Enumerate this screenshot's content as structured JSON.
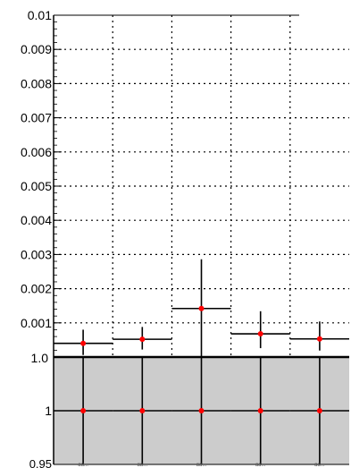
{
  "chart_data": [
    {
      "type": "scatter",
      "categories": [
        "",
        "",
        "",
        "",
        ""
      ],
      "x_bins": [
        [
          0,
          1
        ],
        [
          1,
          2
        ],
        [
          2,
          3
        ],
        [
          3,
          4
        ],
        [
          4,
          5
        ]
      ],
      "series": [
        {
          "values": [
            0.0004,
            0.00052,
            0.00142,
            0.00068,
            0.00053
          ],
          "err_low": [
            0.00034,
            0.0003,
            0.00142,
            0.00042,
            0.00034
          ],
          "err_high": [
            0.0004,
            0.00036,
            0.00144,
            0.00066,
            0.00051
          ],
          "marker_color": "#ff0000",
          "line_color": "#000000"
        }
      ],
      "ylim": [
        0,
        0.01
      ],
      "yticks": [
        {
          "value": 0.001,
          "label": "0.001"
        },
        {
          "value": 0.002,
          "label": "0.002"
        },
        {
          "value": 0.003,
          "label": "0.003"
        },
        {
          "value": 0.004,
          "label": "0.004"
        },
        {
          "value": 0.005,
          "label": "0.005"
        },
        {
          "value": 0.006,
          "label": "0.006"
        },
        {
          "value": 0.007,
          "label": "0.007"
        },
        {
          "value": 0.008,
          "label": "0.008"
        },
        {
          "value": 0.009,
          "label": "0.009"
        },
        {
          "value": 0.01,
          "label": "0.01"
        }
      ],
      "grid": true,
      "title": "",
      "xlabel": "",
      "ylabel": ""
    },
    {
      "type": "scatter",
      "categories": [
        "",
        "",
        "",
        "",
        ""
      ],
      "x_bins": [
        [
          0,
          1
        ],
        [
          1,
          2
        ],
        [
          2,
          3
        ],
        [
          3,
          4
        ],
        [
          4,
          5
        ]
      ],
      "series": [
        {
          "values": [
            1,
            1,
            1,
            1,
            1
          ],
          "marker_color": "#ff0000",
          "line_color": "#000000"
        }
      ],
      "ylim": [
        0.95,
        1.05
      ],
      "yticks": [
        {
          "value": 1,
          "label": "1"
        },
        {
          "value": 0.95,
          "label": "0.95"
        }
      ],
      "background_color": "#cccccc",
      "title": "",
      "xlabel": "",
      "ylabel": ""
    }
  ],
  "top_cut_label": "1.0",
  "category_labels": [
    "ɑɑ...",
    "ɑɑ...",
    "ɑɑ...",
    "ɑɑ...",
    "ɑɑ..."
  ]
}
